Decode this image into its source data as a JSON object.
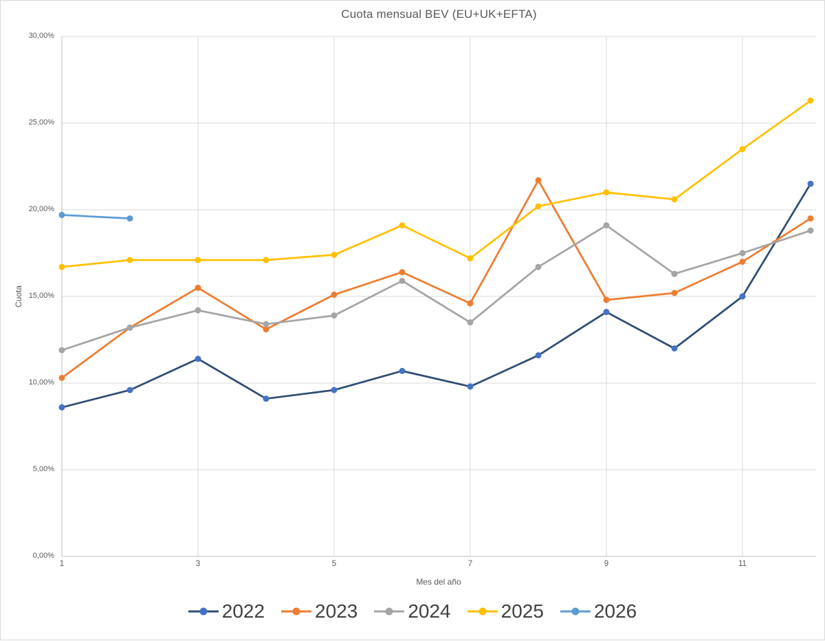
{
  "chart_data": {
    "type": "line",
    "title": "Cuota mensual BEV (EU+UK+EFTA)",
    "xlabel": "Mes del año",
    "ylabel": "Cuota",
    "ylim": [
      0,
      30
    ],
    "x_range": [
      1,
      12
    ],
    "grid": true,
    "legend_position": "bottom",
    "y_ticks": [
      {
        "value": 0,
        "label": "0,00%"
      },
      {
        "value": 5,
        "label": "5,00%"
      },
      {
        "value": 10,
        "label": "10,00%"
      },
      {
        "value": 15,
        "label": "15,00%"
      },
      {
        "value": 20,
        "label": "20,00%"
      },
      {
        "value": 25,
        "label": "25,00%"
      },
      {
        "value": 30,
        "label": "30,00%"
      }
    ],
    "x_ticks": [
      {
        "value": 1,
        "label": "1"
      },
      {
        "value": 3,
        "label": "3"
      },
      {
        "value": 5,
        "label": "5"
      },
      {
        "value": 7,
        "label": "7"
      },
      {
        "value": 9,
        "label": "9"
      },
      {
        "value": 11,
        "label": "11"
      }
    ],
    "series": [
      {
        "name": "2022",
        "line_color": "#2F4D73",
        "marker_color": "#4472C4",
        "values": [
          8.6,
          9.6,
          11.4,
          9.1,
          9.6,
          10.7,
          9.8,
          11.6,
          14.1,
          12.0,
          15.0,
          21.5
        ]
      },
      {
        "name": "2023",
        "line_color": "#ED7D31",
        "marker_color": "#ED7D31",
        "values": [
          10.3,
          13.2,
          15.5,
          13.1,
          15.1,
          16.4,
          14.6,
          21.7,
          14.8,
          15.2,
          17.0,
          19.5
        ]
      },
      {
        "name": "2024",
        "line_color": "#A5A5A5",
        "marker_color": "#A5A5A5",
        "values": [
          11.9,
          13.2,
          14.2,
          13.4,
          13.9,
          15.9,
          13.5,
          16.7,
          19.1,
          16.3,
          17.5,
          18.8
        ]
      },
      {
        "name": "2025",
        "line_color": "#FFC000",
        "marker_color": "#FFC000",
        "values": [
          16.7,
          17.1,
          17.1,
          17.1,
          17.4,
          19.1,
          17.2,
          20.2,
          21.0,
          20.6,
          23.5,
          26.3
        ]
      },
      {
        "name": "2026",
        "line_color": "#5B9BD5",
        "marker_color": "#5B9BD5",
        "values": [
          19.7,
          19.5
        ]
      }
    ]
  },
  "colors": {
    "background": "#FFFFFF",
    "border": "#D9D9D9",
    "gridline": "#D9D9D9",
    "axis_line": "#BFBFBF",
    "tick_text": "#595959",
    "title_text": "#595959",
    "legend_text": "#404040"
  }
}
